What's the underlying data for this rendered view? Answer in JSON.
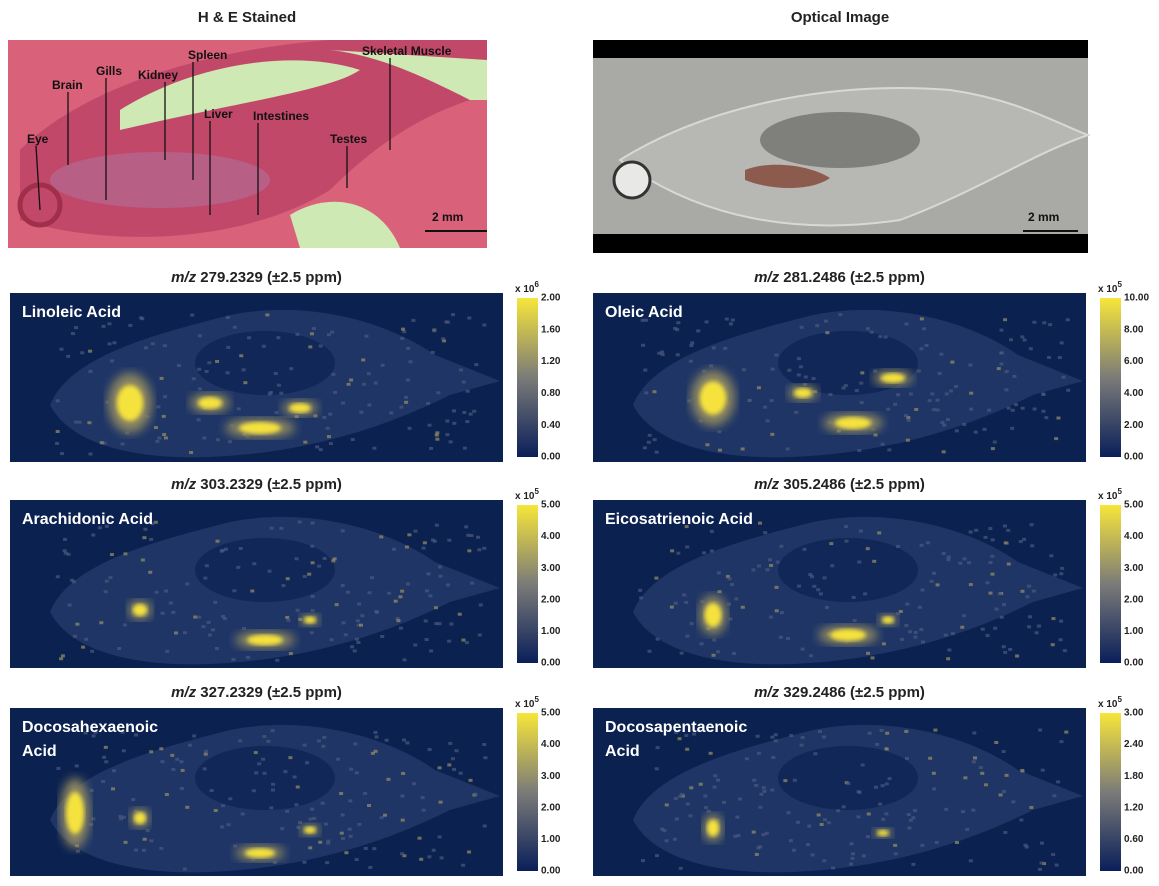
{
  "figure": {
    "top": [
      {
        "title": "H & E Stained",
        "labels": [
          "Eye",
          "Brain",
          "Gills",
          "Kidney",
          "Spleen",
          "Liver",
          "Intestines",
          "Skeletal Muscle",
          "Testes"
        ],
        "scale": "2 mm"
      },
      {
        "title": "Optical Image",
        "scale": "2 mm"
      }
    ],
    "panels": [
      {
        "mz_prefix": "m/z",
        "mz": "279.2329 (±2.5 ppm)",
        "name": [
          "Linoleic Acid"
        ],
        "cb_prefix": "x 10",
        "cb_exp": "6",
        "ticks": [
          "2.00",
          "1.60",
          "1.20",
          "0.80",
          "0.40",
          "0.00"
        ]
      },
      {
        "mz_prefix": "m/z",
        "mz": "281.2486 (±2.5 ppm)",
        "name": [
          "Oleic Acid"
        ],
        "cb_prefix": "x 10",
        "cb_exp": "5",
        "ticks": [
          "10.00",
          "8.00",
          "6.00",
          "4.00",
          "2.00",
          "0.00"
        ]
      },
      {
        "mz_prefix": "m/z",
        "mz": "303.2329 (±2.5 ppm)",
        "name": [
          "Arachidonic Acid"
        ],
        "cb_prefix": "x 10",
        "cb_exp": "5",
        "ticks": [
          "5.00",
          "4.00",
          "3.00",
          "2.00",
          "1.00",
          "0.00"
        ]
      },
      {
        "mz_prefix": "m/z",
        "mz": "305.2486 (±2.5 ppm)",
        "name": [
          "Eicosatrienoic Acid"
        ],
        "cb_prefix": "x 10",
        "cb_exp": "5",
        "ticks": [
          "5.00",
          "4.00",
          "3.00",
          "2.00",
          "1.00",
          "0.00"
        ]
      },
      {
        "mz_prefix": "m/z",
        "mz": "327.2329 (±2.5 ppm)",
        "name": [
          "Docosahexaenoic",
          "Acid"
        ],
        "cb_prefix": "x 10",
        "cb_exp": "5",
        "ticks": [
          "5.00",
          "4.00",
          "3.00",
          "2.00",
          "1.00",
          "0.00"
        ]
      },
      {
        "mz_prefix": "m/z",
        "mz": "329.2486 (±2.5 ppm)",
        "name": [
          "Docosapentaenoic",
          "Acid"
        ],
        "cb_prefix": "x 10",
        "cb_exp": "5",
        "ticks": [
          "3.00",
          "2.40",
          "1.80",
          "1.20",
          "0.60",
          "0.00"
        ]
      }
    ]
  }
}
